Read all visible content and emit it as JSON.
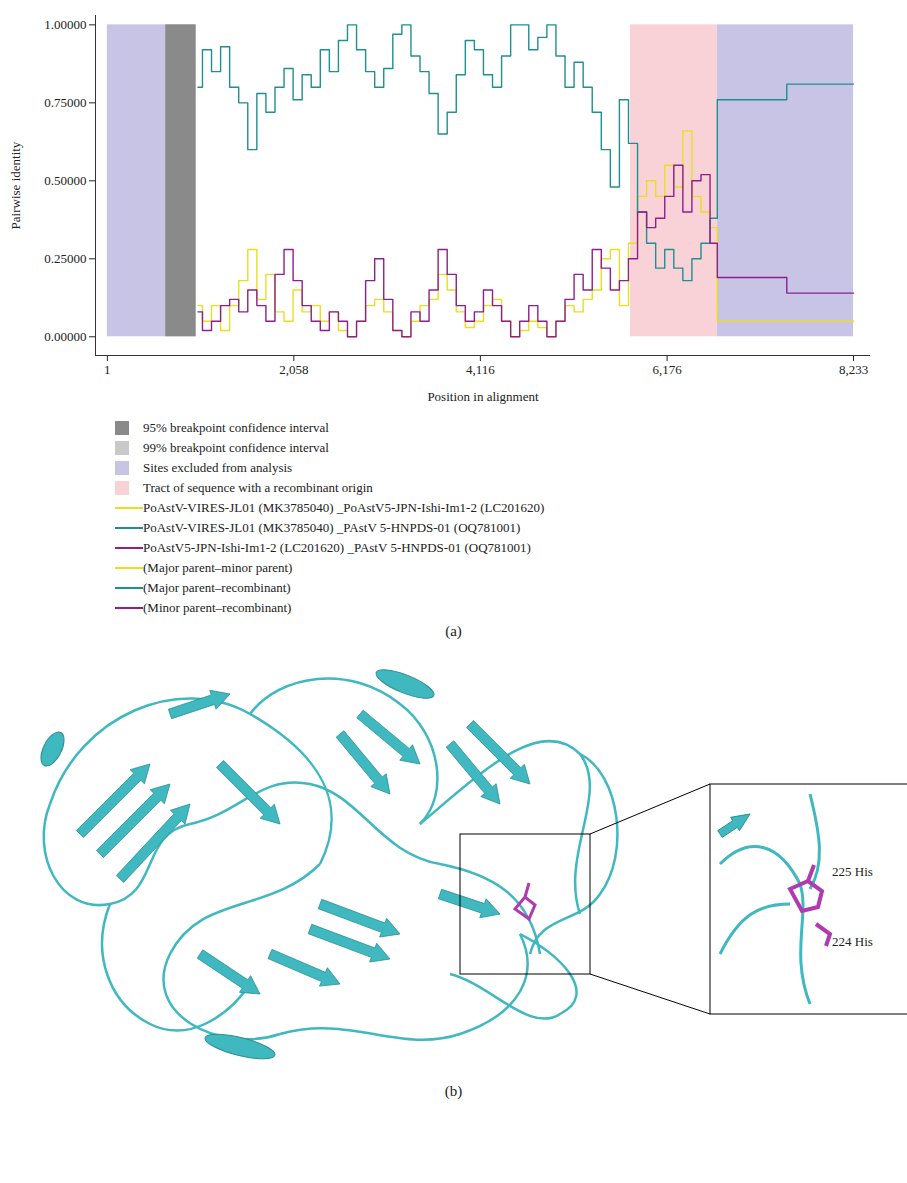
{
  "chart_data": {
    "type": "line",
    "panel_label": "(a)",
    "x_label": "Position in alignment",
    "y_label": "Pairwise identity",
    "xlim": [
      -130,
      8420
    ],
    "ylim": [
      -0.06,
      1.03
    ],
    "xticks": [
      1,
      {
        "value": 2058,
        "label": "2,058"
      },
      {
        "value": 4116,
        "label": "4,116"
      },
      {
        "value": 6176,
        "label": "6,176"
      },
      {
        "value": 8233,
        "label": "8,233"
      }
    ],
    "yticks": [
      {
        "value": 0,
        "label": "0.00000"
      },
      {
        "value": 0.25,
        "label": "0.25000"
      },
      {
        "value": 0.5,
        "label": "0.50000"
      },
      {
        "value": 0.75,
        "label": "0.75000"
      },
      {
        "value": 1,
        "label": "1.00000"
      }
    ],
    "legend": "bottom",
    "regions": [
      {
        "name": "95% breakpoint confidence interval",
        "color": "#8a8a8a",
        "y_extent": [
          0,
          1
        ],
        "spans": [
          [
            645,
            980
          ]
        ]
      },
      {
        "name": "99% breakpoint confidence interval",
        "color": "#c9c9c9",
        "y_extent": [
          0,
          1
        ],
        "spans": [
          [
            645,
            980
          ]
        ]
      },
      {
        "name": "Sites excluded from analysis",
        "color": "#c7c4e6",
        "y_extent": [
          0,
          1
        ],
        "spans": [
          [
            1,
            645
          ],
          [
            6731,
            8233
          ]
        ]
      },
      {
        "name": "Tract of sequence with a recombinant origin",
        "color": "#f8d2d6",
        "y_extent": [
          0,
          1
        ],
        "spans": [
          [
            5773,
            6731
          ]
        ]
      }
    ],
    "x": [
      1000,
      1100,
      1200,
      1300,
      1400,
      1500,
      1600,
      1700,
      1800,
      1900,
      2000,
      2100,
      2200,
      2300,
      2400,
      2500,
      2600,
      2700,
      2800,
      2900,
      3000,
      3100,
      3200,
      3300,
      3400,
      3500,
      3600,
      3700,
      3800,
      3900,
      4000,
      4100,
      4200,
      4300,
      4400,
      4500,
      4600,
      4700,
      4800,
      4900,
      5000,
      5100,
      5200,
      5300,
      5400,
      5500,
      5600,
      5700,
      5800,
      5900,
      6000,
      6100,
      6200,
      6300,
      6400,
      6500,
      6600,
      6700,
      6760,
      8233
    ],
    "series": [
      {
        "name": "PoAstV-VIRES-JL01 (MK3785040) _PoAstV5-JPN-Ishi-Im1-2 (LC201620)",
        "role": "(Major parent–minor parent)",
        "color": "#e6e020",
        "values": [
          0.1,
          0.05,
          0.1,
          0.02,
          0.1,
          0.18,
          0.28,
          0.12,
          0.2,
          0.08,
          0.05,
          0.15,
          0.08,
          0.1,
          0.05,
          0.08,
          0.02,
          0.0,
          0.05,
          0.1,
          0.12,
          0.08,
          0.02,
          0.0,
          0.05,
          0.1,
          0.12,
          0.2,
          0.15,
          0.08,
          0.03,
          0.05,
          0.1,
          0.12,
          0.05,
          0.0,
          0.02,
          0.05,
          0.03,
          0.0,
          0.05,
          0.1,
          0.08,
          0.12,
          0.15,
          0.25,
          0.28,
          0.1,
          0.3,
          0.45,
          0.5,
          0.45,
          0.55,
          0.48,
          0.66,
          0.45,
          0.4,
          0.35,
          0.05,
          0.05
        ]
      },
      {
        "name": "PoAstV-VIRES-JL01 (MK3785040) _PAstV 5-HNPDS-01 (OQ781001)",
        "role": "(Major parent–recombinant)",
        "color": "#1f8f92",
        "values": [
          0.8,
          0.92,
          0.85,
          0.93,
          0.8,
          0.75,
          0.6,
          0.78,
          0.72,
          0.8,
          0.86,
          0.76,
          0.84,
          0.8,
          0.92,
          0.85,
          0.95,
          1.0,
          0.92,
          0.85,
          0.8,
          0.86,
          0.97,
          1.0,
          0.9,
          0.85,
          0.78,
          0.65,
          0.72,
          0.84,
          0.95,
          0.92,
          0.84,
          0.8,
          0.9,
          1.0,
          1.0,
          0.92,
          0.96,
          1.0,
          0.9,
          0.8,
          0.88,
          0.8,
          0.72,
          0.6,
          0.48,
          0.76,
          0.62,
          0.4,
          0.3,
          0.22,
          0.28,
          0.22,
          0.18,
          0.25,
          0.3,
          0.38,
          0.76,
          0.81
        ]
      },
      {
        "name": "PoAstV5-JPN-Ishi-Im1-2 (LC201620) _PAstV 5-HNPDS-01 (OQ781001)",
        "role": "(Minor parent–recombinant)",
        "color": "#8e1f8e",
        "values": [
          0.08,
          0.02,
          0.05,
          0.1,
          0.12,
          0.08,
          0.15,
          0.1,
          0.05,
          0.2,
          0.28,
          0.18,
          0.1,
          0.05,
          0.02,
          0.08,
          0.05,
          0.0,
          0.05,
          0.18,
          0.25,
          0.12,
          0.02,
          0.0,
          0.08,
          0.05,
          0.15,
          0.28,
          0.2,
          0.1,
          0.05,
          0.08,
          0.15,
          0.1,
          0.05,
          0.0,
          0.05,
          0.1,
          0.05,
          0.0,
          0.05,
          0.12,
          0.2,
          0.15,
          0.28,
          0.22,
          0.15,
          0.18,
          0.25,
          0.4,
          0.35,
          0.38,
          0.45,
          0.55,
          0.4,
          0.5,
          0.52,
          0.3,
          0.19,
          0.14
        ]
      }
    ]
  },
  "structure_panel": {
    "panel_label": "(b)",
    "residue_labels": [
      "225 His",
      "224 His"
    ]
  }
}
